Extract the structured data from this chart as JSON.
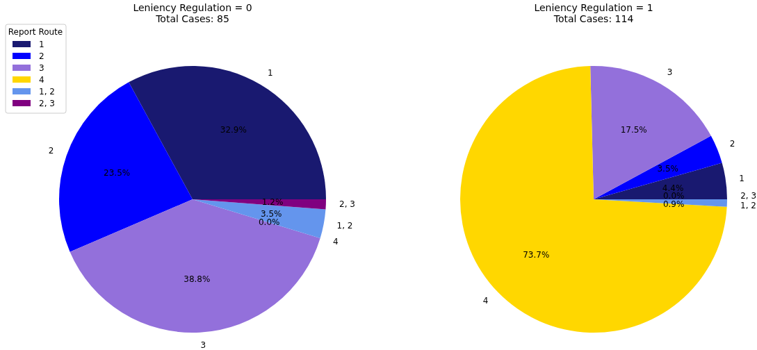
{
  "chart_data": [
    {
      "type": "pie",
      "title": "Leniency Regulation = 0\nTotal Cases: 85",
      "categories": [
        "1",
        "2",
        "3",
        "4",
        "1, 2",
        "2, 3"
      ],
      "values": [
        32.9,
        23.5,
        38.8,
        0.0,
        3.5,
        1.2
      ],
      "value_labels": [
        "32.9%",
        "23.5%",
        "38.8%",
        "0.0%",
        "3.5%",
        "1.2%"
      ],
      "colors": [
        "#191970",
        "#0000ff",
        "#9370db",
        "#ffd700",
        "#6495ed",
        "#800080"
      ],
      "legend": "top left",
      "legend_title": "Report Route"
    },
    {
      "type": "pie",
      "title": "Leniency Regulation = 1\nTotal Cases: 114",
      "categories": [
        "1",
        "2",
        "3",
        "4",
        "1, 2",
        "2, 3"
      ],
      "values": [
        4.4,
        3.5,
        17.5,
        73.7,
        0.9,
        0.0
      ],
      "value_labels": [
        "4.4%",
        "3.5%",
        "17.5%",
        "73.7%",
        "0.9%",
        "0.0%"
      ],
      "colors": [
        "#191970",
        "#0000ff",
        "#9370db",
        "#ffd700",
        "#6495ed",
        "#800080"
      ],
      "legend": false
    }
  ]
}
